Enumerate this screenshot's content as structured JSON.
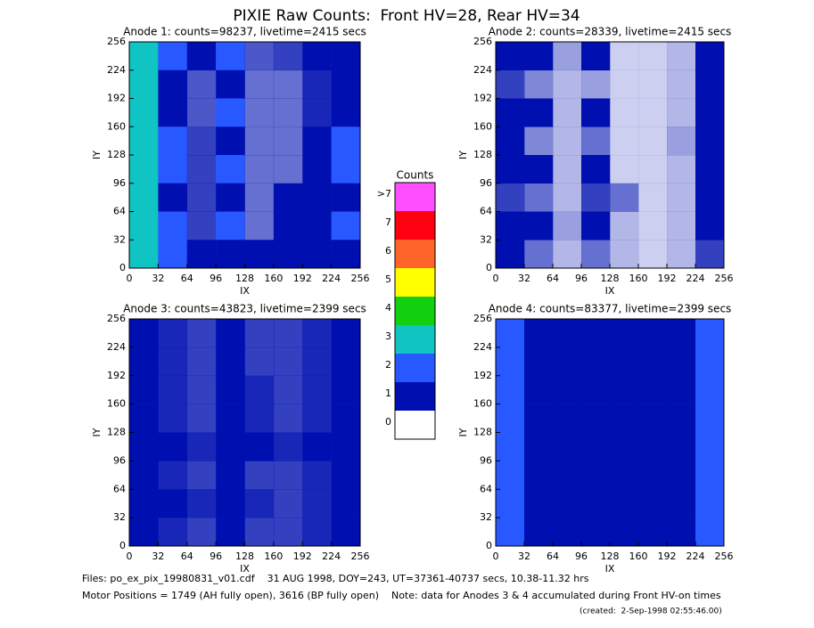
{
  "header": {
    "title": "PIXIE Raw Counts:  Front HV=28, Rear HV=34"
  },
  "chart_data": [
    {
      "type": "heatmap",
      "title": "Anode 1: counts=98237, livetime=2415 secs",
      "xlabel": "IX",
      "ylabel": "IY",
      "xlim": [
        0,
        256
      ],
      "ylim": [
        0,
        256
      ],
      "xticks": [
        0,
        32,
        64,
        96,
        128,
        160,
        192,
        224,
        256
      ],
      "yticks": [
        0,
        32,
        64,
        96,
        128,
        160,
        192,
        224,
        256
      ],
      "values": [
        [
          3.5,
          2,
          1,
          2,
          0.7,
          0.8,
          1.2,
          1.5
        ],
        [
          3,
          1.5,
          0.7,
          1,
          0.6,
          0.6,
          0.9,
          1.5
        ],
        [
          3,
          1.5,
          0.7,
          2,
          0.6,
          0.6,
          0.9,
          1.5
        ],
        [
          3.5,
          2,
          0.8,
          1,
          0.6,
          0.6,
          1,
          2.5
        ],
        [
          3.5,
          2,
          0.8,
          2,
          0.6,
          0.6,
          1,
          2
        ],
        [
          3,
          1.5,
          0.8,
          1.5,
          0.6,
          1.5,
          1,
          1.5
        ],
        [
          3.5,
          2,
          0.8,
          2,
          0.6,
          1,
          1,
          2
        ],
        [
          3,
          2,
          1.2,
          1.5,
          1.2,
          1.2,
          1.2,
          1.5
        ]
      ]
    },
    {
      "type": "heatmap",
      "title": "Anode 2: counts=28339, livetime=2415 secs",
      "xlabel": "IX",
      "ylabel": "IY",
      "xlim": [
        0,
        256
      ],
      "ylim": [
        0,
        256
      ],
      "xticks": [
        0,
        32,
        64,
        96,
        128,
        160,
        192,
        224,
        256
      ],
      "yticks": [
        0,
        32,
        64,
        96,
        128,
        160,
        192,
        224,
        256
      ],
      "values": [
        [
          1.5,
          1,
          0.4,
          1,
          0.2,
          0.2,
          0.3,
          1
        ],
        [
          0.8,
          0.5,
          0.3,
          0.4,
          0.2,
          0.2,
          0.3,
          1
        ],
        [
          1.2,
          1,
          0.3,
          1.2,
          0.2,
          0.2,
          0.3,
          1
        ],
        [
          1,
          0.5,
          0.3,
          0.6,
          0.2,
          0.2,
          0.4,
          1.2
        ],
        [
          1.5,
          1.2,
          0.3,
          1.2,
          0.2,
          0.2,
          0.3,
          1.2
        ],
        [
          0.8,
          0.6,
          0.3,
          0.8,
          0.6,
          0.2,
          0.3,
          1
        ],
        [
          1.5,
          1.2,
          0.4,
          1.2,
          0.3,
          0.2,
          0.3,
          1
        ],
        [
          1,
          0.6,
          0.3,
          0.6,
          0.3,
          0.2,
          0.3,
          0.8
        ]
      ]
    },
    {
      "type": "heatmap",
      "title": "Anode 3: counts=43823, livetime=2399 secs",
      "xlabel": "IX",
      "ylabel": "IY",
      "xlim": [
        0,
        256
      ],
      "ylim": [
        0,
        256
      ],
      "xticks": [
        0,
        32,
        64,
        96,
        128,
        160,
        192,
        224,
        256
      ],
      "yticks": [
        0,
        32,
        64,
        96,
        128,
        160,
        192,
        224,
        256
      ],
      "values": [
        [
          1,
          0.9,
          0.8,
          1,
          0.8,
          0.8,
          0.9,
          1
        ],
        [
          1,
          0.9,
          0.8,
          1,
          0.8,
          0.8,
          0.9,
          1.1
        ],
        [
          1.1,
          0.9,
          0.8,
          1.2,
          0.9,
          0.8,
          0.9,
          1
        ],
        [
          1,
          0.9,
          0.8,
          1,
          0.9,
          0.8,
          0.9,
          1
        ],
        [
          1.2,
          1,
          0.9,
          1.1,
          1,
          0.9,
          1,
          1.1
        ],
        [
          1,
          0.9,
          0.8,
          1,
          0.8,
          0.8,
          0.9,
          1
        ],
        [
          1.1,
          1,
          0.9,
          1,
          0.9,
          0.8,
          0.9,
          1.1
        ],
        [
          1,
          0.9,
          0.8,
          1,
          0.8,
          0.8,
          0.9,
          1
        ]
      ]
    },
    {
      "type": "heatmap",
      "title": "Anode 4: counts=83377, livetime=2399 secs",
      "xlabel": "IX",
      "ylabel": "IY",
      "xlim": [
        0,
        256
      ],
      "ylim": [
        0,
        256
      ],
      "xticks": [
        0,
        32,
        64,
        96,
        128,
        160,
        192,
        224,
        256
      ],
      "yticks": [
        0,
        32,
        64,
        96,
        128,
        160,
        192,
        224,
        256
      ],
      "values": [
        [
          2.5,
          1.3,
          1,
          1.1,
          1,
          1,
          1.3,
          2.5
        ],
        [
          2.5,
          1.2,
          1,
          1,
          1,
          1,
          1.2,
          2.5
        ],
        [
          2.5,
          1.2,
          1,
          1.1,
          1,
          1,
          1.3,
          2.5
        ],
        [
          2.5,
          1.2,
          1,
          1,
          1,
          1,
          1.2,
          2.5
        ],
        [
          2.6,
          1.4,
          1.2,
          1.3,
          1.2,
          1.2,
          1.4,
          2.6
        ],
        [
          2.5,
          1.2,
          1,
          1,
          1,
          1,
          1.2,
          2.5
        ],
        [
          2.5,
          1.3,
          1,
          1.1,
          1,
          1,
          1.3,
          2.6
        ],
        [
          2.4,
          1.2,
          1,
          1,
          1,
          1,
          1.2,
          2.4
        ]
      ]
    }
  ],
  "colorbar": {
    "title": "Counts",
    "levels": [
      {
        "value": 0,
        "label": "0",
        "color": "#ffffff"
      },
      {
        "value": 1,
        "label": "1",
        "color": "#0010b0"
      },
      {
        "value": 2,
        "label": "2",
        "color": "#2858ff"
      },
      {
        "value": 3,
        "label": "3",
        "color": "#10c4c4"
      },
      {
        "value": 4,
        "label": "4",
        "color": "#10d010"
      },
      {
        "value": 5,
        "label": "5",
        "color": "#ffff00"
      },
      {
        "value": 6,
        "label": "6",
        "color": "#ff6428"
      },
      {
        "value": 7,
        "label": "7",
        "color": "#ff0010"
      },
      {
        "value": 8,
        "label": ">7",
        "color": "#ff50ff"
      }
    ]
  },
  "footer": {
    "files": "Files: po_ex_pix_19980831_v01.cdf    31 AUG 1998, DOY=243, UT=37361-40737 secs, 10.38-11.32 hrs",
    "motor": "Motor Positions = 1749 (AH fully open), 3616 (BP fully open)    Note: data for Anodes 3 & 4 accumulated during Front HV-on times",
    "created": "(created:  2-Sep-1998 02:55:46.00)"
  }
}
